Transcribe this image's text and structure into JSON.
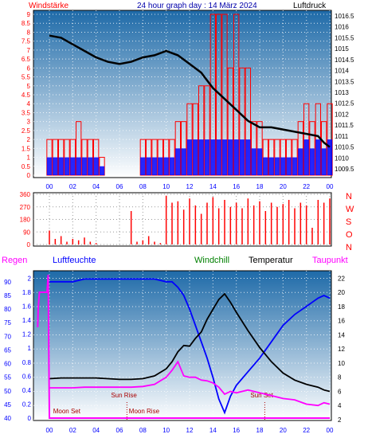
{
  "header": {
    "left_label": "Windstärke",
    "title": "24 hour graph day : 14 März 2024",
    "right_label": "Luftdruck"
  },
  "lower_labels": {
    "regen": "Regen",
    "luftfeuchte": "Luftfeuchte",
    "windchill": "Windchill",
    "temperatur": "Temperatur",
    "taupunkt": "Taupunkt"
  },
  "annotations": {
    "moon_set": "Moon Set",
    "moon_rise": "Moon Rise",
    "sun_rise": "Sun Rise",
    "sun_set": "Sun Set"
  },
  "colors": {
    "background_top": "#1e6aa8",
    "background_bottom": "#ffffff",
    "wind_bar": "#ff0000",
    "wind_avg_bar": "#0000ff",
    "pressure": "#000000",
    "direction": "#ff0000",
    "humidity": "#0000ff",
    "temperature": "#000000",
    "dewpoint": "#ff00ff",
    "windchill": "#008000",
    "rain": "#ff00ff",
    "axis_red": "#ff0000",
    "axis_blue": "#0000ff",
    "axis_black": "#000000",
    "annotation": "#aa0000"
  },
  "chart_data": [
    {
      "type": "bar",
      "panel": "wind_pressure",
      "title": "24 hour graph day : 14 März 2024",
      "x_ticks": [
        "00",
        "02",
        "04",
        "06",
        "08",
        "10",
        "12",
        "14",
        "16",
        "18",
        "20",
        "22",
        "00"
      ],
      "left_axis_label": "Windstärke",
      "left_ticks": [
        "0",
        "0.5",
        "1",
        "1.5",
        "2",
        "2.5",
        "3",
        "3.5",
        "4",
        "4.5",
        "5",
        "5.5",
        "6",
        "6.5",
        "7",
        "7.5",
        "8",
        "8.5",
        "9"
      ],
      "ylim_left": [
        0,
        9
      ],
      "right_axis_label": "Luftdruck",
      "right_ticks": [
        "1009.5",
        "1010",
        "1010.5",
        "1011",
        "1011.5",
        "1012",
        "1012.5",
        "1013",
        "1013.5",
        "1014",
        "1014.5",
        "1015",
        "1015.5",
        "1016",
        "1016.5"
      ],
      "ylim_right": [
        1009.5,
        1016.5
      ],
      "series": [
        {
          "name": "Windstärke",
          "color": "#ff0000",
          "axis": "left",
          "x": [
            0,
            0.5,
            1,
            1.5,
            2,
            2.5,
            3,
            3.5,
            4,
            4.5,
            5,
            5.5,
            6,
            6.5,
            7,
            7.5,
            8,
            8.5,
            9,
            9.5,
            10,
            10.5,
            11,
            11.5,
            12,
            12.5,
            13,
            13.5,
            14,
            14.5,
            15,
            15.5,
            16,
            16.5,
            17,
            17.5,
            18,
            18.5,
            19,
            19.5,
            20,
            20.5,
            21,
            21.5,
            22,
            22.5,
            23,
            23.5,
            24
          ],
          "values": [
            2,
            2,
            2,
            2,
            2,
            3,
            2,
            2,
            2,
            1,
            0,
            0,
            0,
            0,
            0,
            0,
            2,
            2,
            2,
            2,
            2,
            2,
            3,
            3,
            4,
            4,
            5,
            5,
            9,
            9,
            9,
            6,
            9,
            6,
            6,
            3,
            3,
            2,
            2,
            2,
            2,
            2,
            2,
            3,
            4,
            3,
            4,
            3,
            4
          ]
        },
        {
          "name": "Windstärke Mittel",
          "color": "#0000ff",
          "axis": "left",
          "x": [
            0,
            0.5,
            1,
            1.5,
            2,
            2.5,
            3,
            3.5,
            4,
            4.5,
            5,
            5.5,
            6,
            6.5,
            7,
            7.5,
            8,
            8.5,
            9,
            9.5,
            10,
            10.5,
            11,
            11.5,
            12,
            12.5,
            13,
            13.5,
            14,
            14.5,
            15,
            15.5,
            16,
            16.5,
            17,
            17.5,
            18,
            18.5,
            19,
            19.5,
            20,
            20.5,
            21,
            21.5,
            22,
            22.5,
            23,
            23.5,
            24
          ],
          "values": [
            1,
            1,
            1,
            1,
            1,
            1,
            1,
            1,
            1,
            0.5,
            0,
            0,
            0,
            0,
            0,
            0,
            1,
            1,
            1,
            1,
            1,
            1,
            1.5,
            1.5,
            2,
            2,
            2,
            2,
            2,
            2,
            2,
            2,
            2,
            2,
            2,
            1.5,
            1.5,
            1,
            1,
            1,
            1,
            1,
            1,
            1.5,
            2,
            1.5,
            2,
            1.5,
            2
          ]
        },
        {
          "name": "Luftdruck",
          "color": "#000000",
          "axis": "right",
          "x": [
            0,
            1,
            2,
            3,
            4,
            5,
            6,
            7,
            8,
            9,
            10,
            11,
            12,
            13,
            14,
            15,
            16,
            17,
            18,
            19,
            20,
            21,
            22,
            23,
            23.5,
            24
          ],
          "values": [
            1015.6,
            1015.5,
            1015.2,
            1014.9,
            1014.6,
            1014.4,
            1014.3,
            1014.4,
            1014.6,
            1014.7,
            1014.9,
            1014.7,
            1014.3,
            1013.9,
            1013.2,
            1012.7,
            1012.2,
            1011.7,
            1011.4,
            1011.4,
            1011.3,
            1011.2,
            1011.1,
            1011.0,
            1010.7,
            1010.5
          ]
        }
      ]
    },
    {
      "type": "bar",
      "panel": "wind_direction",
      "left_ticks": [
        "0",
        "90",
        "180",
        "270",
        "360"
      ],
      "ylim": [
        0,
        360
      ],
      "right_labels": [
        "N",
        "W",
        "S",
        "O",
        "N"
      ],
      "series": [
        {
          "name": "Windrichtung",
          "color": "#ff0000",
          "x": [
            0,
            0.5,
            1,
            1.5,
            2,
            2.5,
            3,
            3.5,
            4,
            4.5,
            5,
            5.5,
            6,
            6.5,
            7,
            7.5,
            8,
            8.5,
            9,
            9.5,
            10,
            10.5,
            11,
            11.5,
            12,
            12.5,
            13,
            13.5,
            14,
            14.5,
            15,
            15.5,
            16,
            16.5,
            17,
            17.5,
            18,
            18.5,
            19,
            19.5,
            20,
            20.5,
            21,
            21.5,
            22,
            22.5,
            23,
            23.5,
            24
          ],
          "values": [
            100,
            40,
            60,
            20,
            40,
            30,
            50,
            20,
            10,
            0,
            0,
            0,
            0,
            0,
            240,
            20,
            30,
            60,
            20,
            10,
            350,
            300,
            310,
            250,
            330,
            280,
            220,
            300,
            340,
            260,
            320,
            270,
            300,
            260,
            330,
            280,
            310,
            240,
            300,
            270,
            290,
            320,
            260,
            300,
            280,
            120,
            320,
            300,
            330
          ]
        }
      ]
    },
    {
      "type": "line",
      "panel": "temperature_humidity",
      "x_ticks": [
        "00",
        "02",
        "04",
        "06",
        "08",
        "10",
        "12",
        "14",
        "16",
        "18",
        "20",
        "22",
        "00"
      ],
      "humidity_ticks": [
        "40",
        "45",
        "50",
        "55",
        "60",
        "65",
        "70",
        "75",
        "80",
        "85",
        "90"
      ],
      "ylim_humidity": [
        40,
        92
      ],
      "rain_ticks": [
        "0",
        "0.2",
        "0.4",
        "0.6",
        "0.8",
        "1",
        "1.2",
        "1.4",
        "1.6",
        "1.8",
        "2"
      ],
      "ylim_rain": [
        0,
        2.05
      ],
      "temp_ticks": [
        "2",
        "4",
        "6",
        "8",
        "10",
        "12",
        "14",
        "16",
        "18",
        "20",
        "22"
      ],
      "ylim_temp": [
        2,
        22.5
      ],
      "series": [
        {
          "name": "Luftfeuchte",
          "color": "#0000ff",
          "axis": "humidity",
          "x": [
            0,
            1,
            2,
            3,
            4,
            5,
            6,
            7,
            8,
            9,
            10,
            10.5,
            11,
            11.5,
            12,
            12.5,
            13,
            13.5,
            14,
            14.5,
            15,
            15.5,
            16,
            17,
            18,
            19,
            20,
            21,
            22,
            23,
            23.5,
            24
          ],
          "values": [
            90,
            90,
            90,
            91,
            91,
            91,
            91,
            91,
            91,
            91,
            90,
            90,
            88,
            85,
            80,
            74,
            68,
            62,
            55,
            47,
            42,
            48,
            52,
            57,
            62,
            68,
            74,
            78,
            81,
            84,
            85,
            84
          ]
        },
        {
          "name": "Temperatur",
          "color": "#000000",
          "axis": "temp",
          "x": [
            0,
            1,
            2,
            3,
            4,
            5,
            6,
            7,
            8,
            9,
            10,
            10.5,
            11,
            11.5,
            12,
            12.5,
            13,
            13.5,
            14,
            14.5,
            15,
            15.5,
            16,
            17,
            18,
            19,
            20,
            21,
            22,
            23,
            23.5,
            24
          ],
          "values": [
            7.8,
            7.9,
            7.9,
            7.9,
            7.9,
            7.8,
            7.7,
            7.7,
            7.8,
            8.2,
            9.2,
            10.2,
            11.6,
            12.5,
            12.4,
            13.5,
            14.4,
            16.2,
            17.6,
            19.0,
            19.8,
            18.6,
            17.2,
            14.6,
            12.2,
            10.2,
            8.6,
            7.6,
            7.0,
            6.6,
            6.2,
            6.0
          ]
        },
        {
          "name": "Taupunkt",
          "color": "#ff00ff",
          "axis": "temp",
          "x": [
            0,
            1,
            2,
            3,
            4,
            5,
            6,
            7,
            8,
            9,
            10,
            10.5,
            11,
            11.5,
            12,
            12.5,
            13,
            13.5,
            14,
            14.5,
            15,
            15.5,
            16,
            17,
            18,
            19,
            20,
            21,
            22,
            23,
            23.5,
            24
          ],
          "values": [
            6.5,
            6.5,
            6.5,
            6.6,
            6.6,
            6.6,
            6.6,
            6.6,
            6.7,
            7.0,
            8.0,
            9.0,
            10.2,
            8.2,
            8.0,
            8.0,
            7.6,
            7.5,
            7.2,
            6.6,
            5.6,
            6.0,
            5.8,
            6.2,
            5.8,
            5.4,
            5.0,
            4.8,
            4.2,
            4.0,
            4.4,
            4.2
          ]
        },
        {
          "name": "Regen",
          "color": "#ff00ff",
          "axis": "rain",
          "x": [
            -1,
            -0.95,
            -0.9,
            -0.85,
            -0.8,
            -0.2,
            -0.1,
            0,
            24
          ],
          "values": [
            1.3,
            1.6,
            1.7,
            1.8,
            1.8,
            1.8,
            2.05,
            0,
            0
          ]
        }
      ],
      "events": [
        {
          "label": "Moon Set",
          "x": 0.05
        },
        {
          "label": "Sun Rise",
          "x": 6.5
        },
        {
          "label": "Moon Rise",
          "x": 6.6
        },
        {
          "label": "Sun Set",
          "x": 18.3
        }
      ]
    }
  ]
}
